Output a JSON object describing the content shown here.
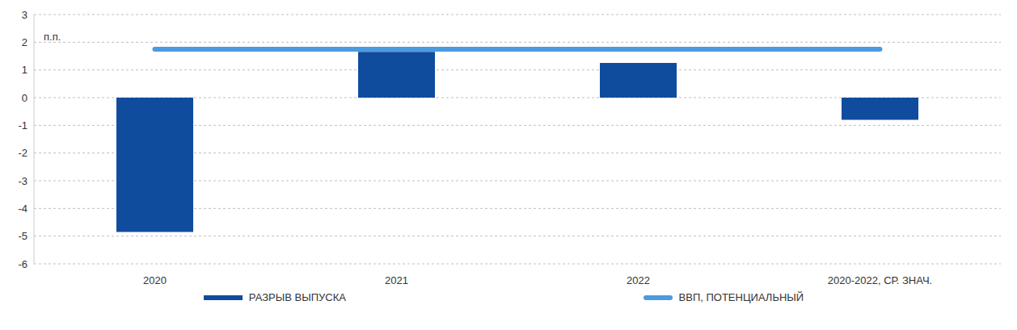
{
  "chart_data": {
    "type": "bar",
    "y_label": "п.п.",
    "categories": [
      "2020",
      "2021",
      "2022",
      "2020-2022, СР. ЗНАЧ."
    ],
    "series": [
      {
        "name": "РАЗРЫВ ВЫПУСКА",
        "type": "bar",
        "color": "#0f4c9e",
        "values": [
          -4.85,
          1.65,
          1.25,
          -0.8
        ]
      },
      {
        "name": "ВВП, ПОТЕНЦИАЛЬНЫЙ",
        "type": "line",
        "color": "#4b9be0",
        "values": [
          1.75,
          1.75,
          1.75,
          1.75
        ]
      }
    ],
    "ylim": [
      -6,
      3
    ],
    "yticks": [
      -6,
      -5,
      -4,
      -3,
      -2,
      -1,
      0,
      1,
      2,
      3
    ],
    "grid": true,
    "legend": "bottom"
  }
}
